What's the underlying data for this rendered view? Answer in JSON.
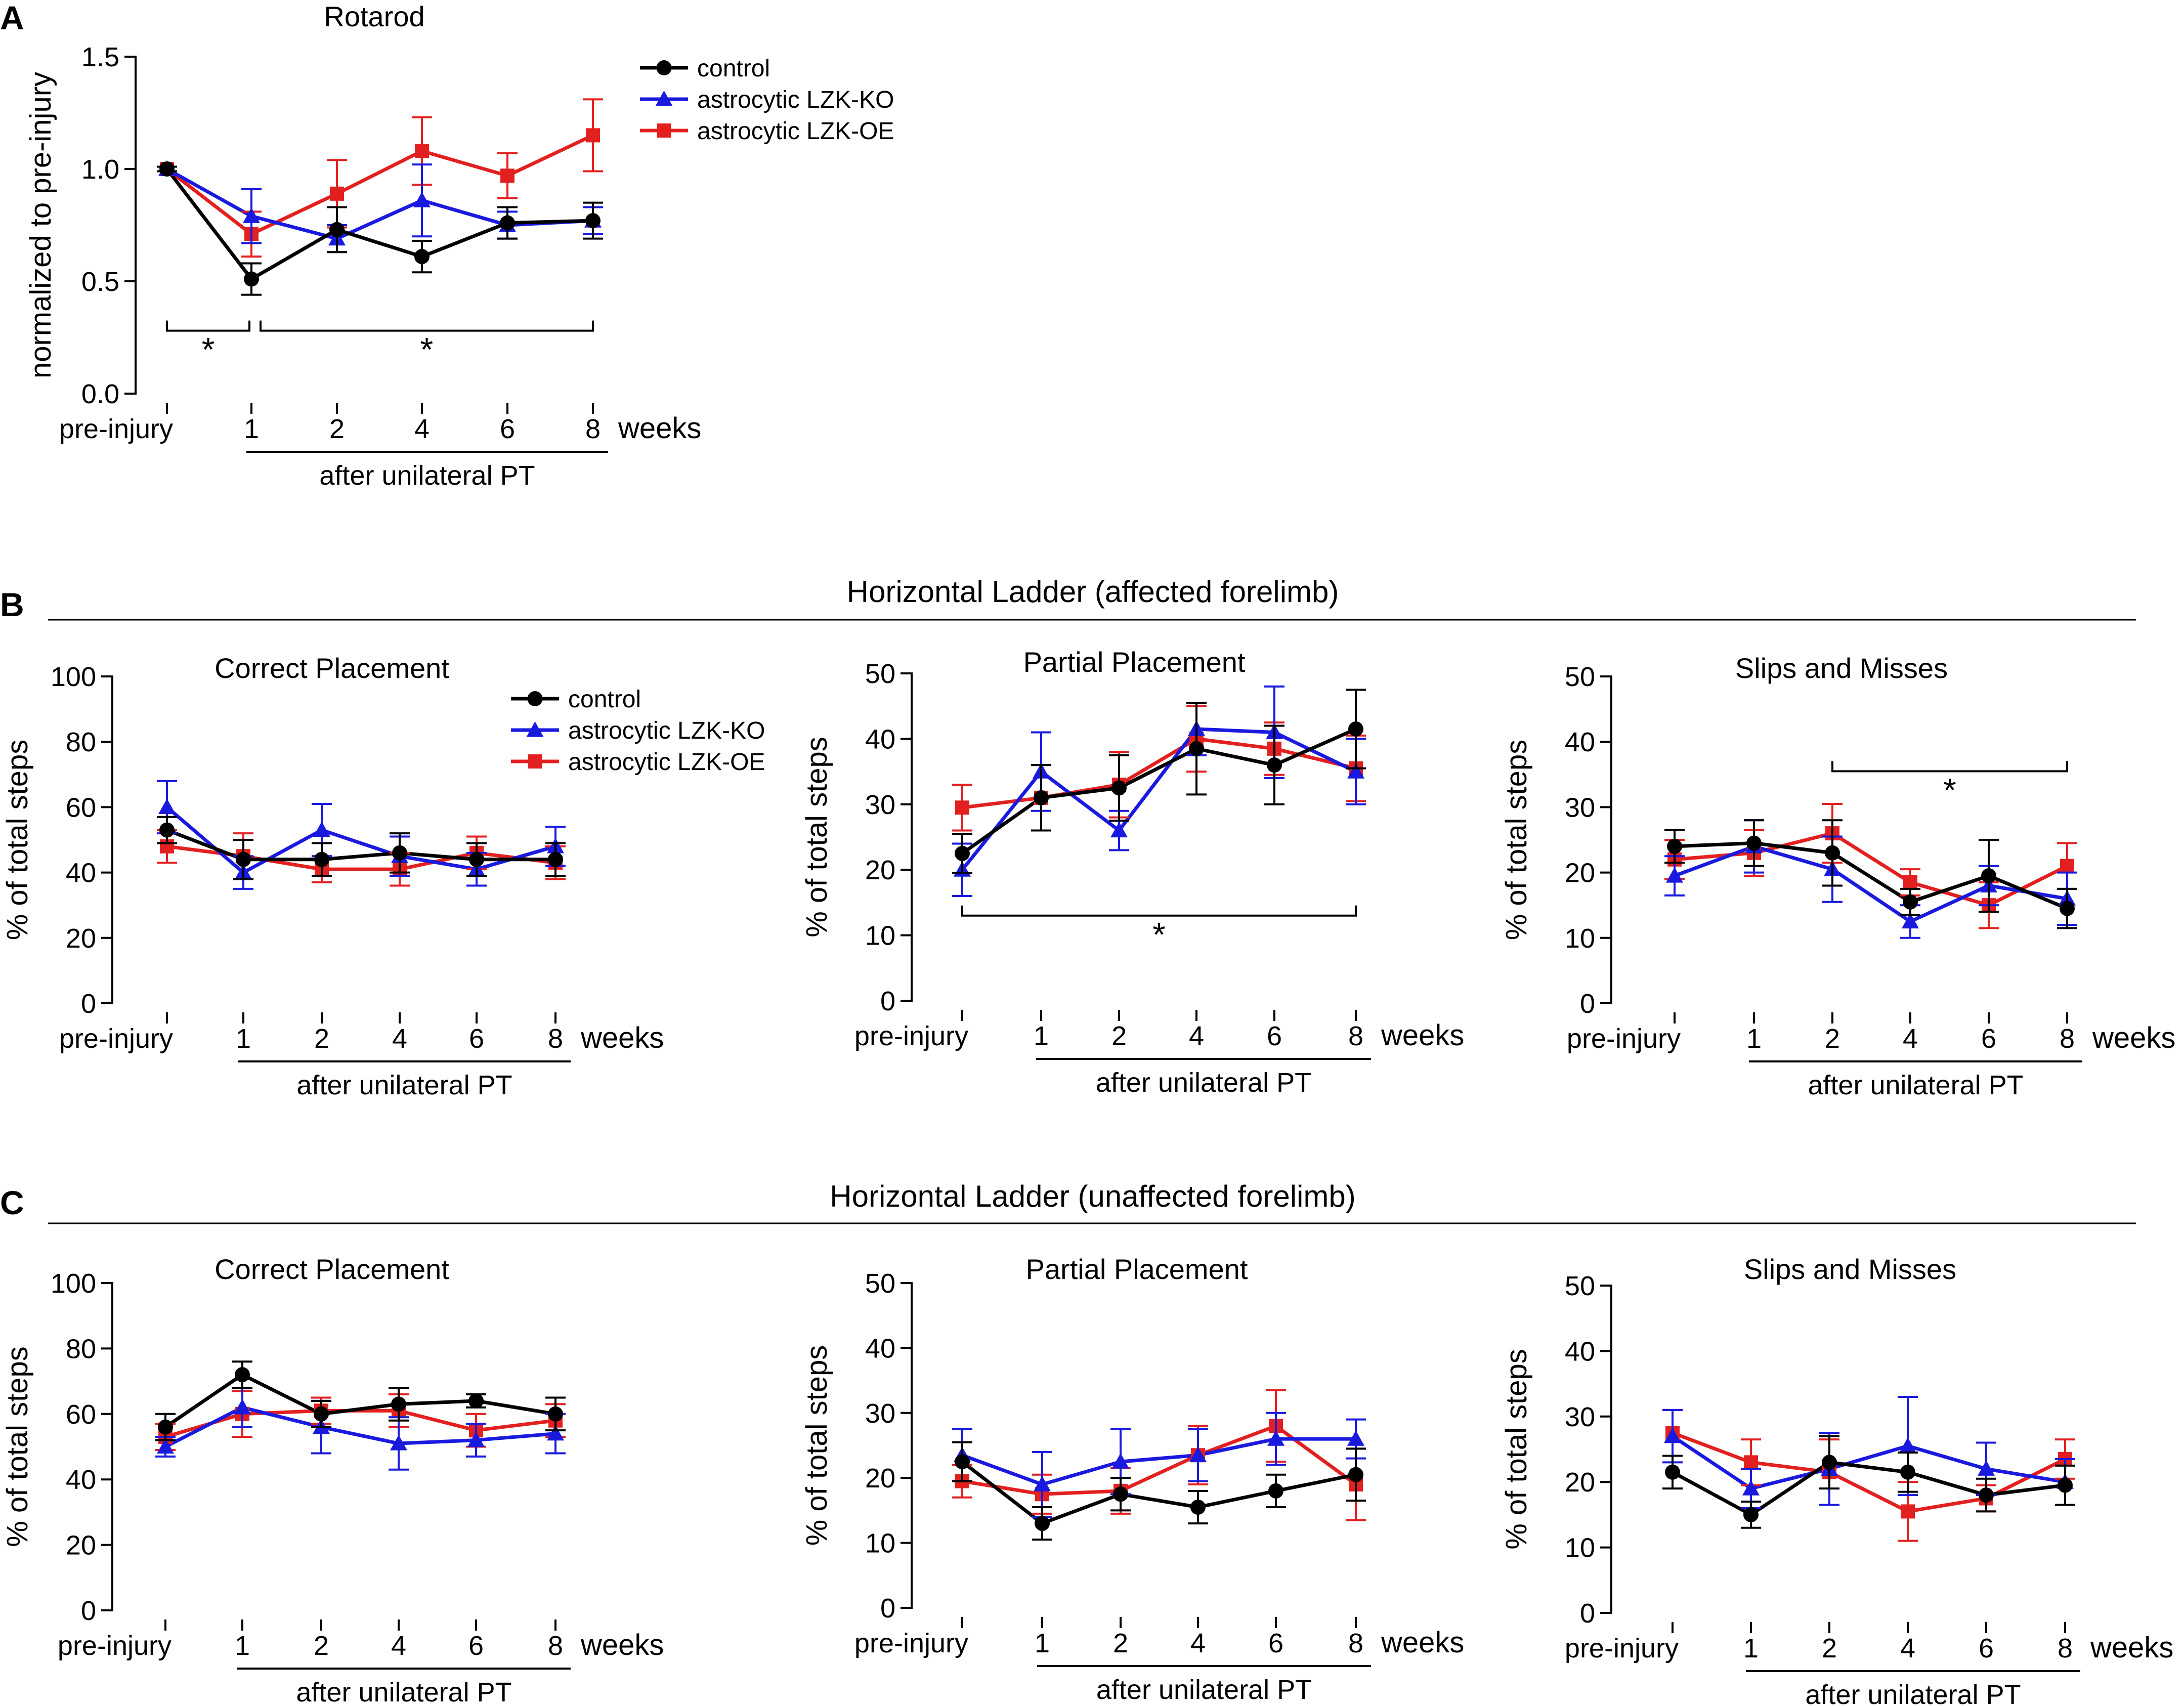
{
  "figure": {
    "sections": [
      {
        "letter": "A",
        "title": ""
      },
      {
        "letter": "B",
        "title": "Horizontal Ladder (affected forelimb)"
      },
      {
        "letter": "C",
        "title": "Horizontal Ladder (unaffected forelimb)"
      }
    ],
    "xaxis_common": {
      "units_label": "weeks",
      "bracket_label": "after unilateral PT"
    }
  },
  "chart_data": [
    {
      "id": "A",
      "type": "line",
      "title": "Rotarod",
      "ylabel": "normalized to pre-injury",
      "ylim": [
        0,
        1.5
      ],
      "yticks": [
        0.0,
        0.5,
        1.0,
        1.5
      ],
      "ytick_labels": [
        "0.0",
        "0.5",
        "1.0",
        "1.5"
      ],
      "categories": [
        "pre-injury",
        "1",
        "2",
        "4",
        "6",
        "8"
      ],
      "xlabel": "weeks",
      "legend": {
        "position": "top-right",
        "entries": [
          "control",
          "astrocytic LZK-KO",
          "astrocytic LZK-OE"
        ]
      },
      "series": [
        {
          "name": "control",
          "color": "#000000",
          "marker": "circle",
          "values": [
            1.0,
            0.51,
            0.73,
            0.61,
            0.76,
            0.77
          ],
          "errors": [
            0.01,
            0.07,
            0.1,
            0.07,
            0.07,
            0.08
          ]
        },
        {
          "name": "astrocytic LZK-KO",
          "color": "#1a1adf",
          "marker": "triangle",
          "values": [
            1.0,
            0.79,
            0.69,
            0.86,
            0.75,
            0.77
          ],
          "errors": [
            0.01,
            0.12,
            0.06,
            0.16,
            0.06,
            0.06
          ]
        },
        {
          "name": "astrocytic LZK-OE",
          "color": "#e32020",
          "marker": "square",
          "values": [
            1.0,
            0.71,
            0.89,
            1.08,
            0.97,
            1.15
          ],
          "errors": [
            0.01,
            0.1,
            0.15,
            0.15,
            0.1,
            0.16
          ]
        }
      ],
      "significance": [
        {
          "from": 0,
          "to": 1,
          "label": "*",
          "y": 0.28
        },
        {
          "from": 1,
          "to": 5,
          "label": "*",
          "y": 0.28
        }
      ]
    },
    {
      "id": "B1",
      "type": "line",
      "title": "Correct Placement",
      "ylabel": "% of total steps",
      "ylim": [
        0,
        100
      ],
      "yticks": [
        0,
        20,
        40,
        60,
        80,
        100
      ],
      "ytick_labels": [
        "0",
        "20",
        "40",
        "60",
        "80",
        "100"
      ],
      "categories": [
        "pre-injury",
        "1",
        "2",
        "4",
        "6",
        "8"
      ],
      "xlabel": "weeks",
      "legend": {
        "position": "top-right",
        "entries": [
          "control",
          "astrocytic LZK-KO",
          "astrocytic LZK-OE"
        ]
      },
      "series": [
        {
          "name": "control",
          "color": "#000000",
          "marker": "circle",
          "values": [
            53,
            44,
            44,
            46,
            44,
            44
          ],
          "errors": [
            4,
            6,
            5,
            6,
            5,
            5
          ]
        },
        {
          "name": "astrocytic LZK-KO",
          "color": "#1a1adf",
          "marker": "triangle",
          "values": [
            60,
            40,
            53,
            45,
            41,
            48
          ],
          "errors": [
            8,
            5,
            8,
            6,
            5,
            6
          ]
        },
        {
          "name": "astrocytic LZK-OE",
          "color": "#e32020",
          "marker": "square",
          "values": [
            48,
            45,
            41,
            41,
            46,
            43
          ],
          "errors": [
            5,
            7,
            4,
            5,
            5,
            5
          ]
        }
      ],
      "significance": []
    },
    {
      "id": "B2",
      "type": "line",
      "title": "Partial Placement",
      "ylabel": "% of total steps",
      "ylim": [
        0,
        50
      ],
      "yticks": [
        0,
        10,
        20,
        30,
        40,
        50
      ],
      "ytick_labels": [
        "0",
        "10",
        "20",
        "30",
        "40",
        "50"
      ],
      "categories": [
        "pre-injury",
        "1",
        "2",
        "4",
        "6",
        "8"
      ],
      "xlabel": "weeks",
      "series": [
        {
          "name": "control",
          "color": "#000000",
          "marker": "circle",
          "values": [
            22.5,
            31,
            32.5,
            38.5,
            36,
            41.5
          ],
          "errors": [
            3,
            5,
            5,
            7,
            6,
            6
          ]
        },
        {
          "name": "astrocytic LZK-KO",
          "color": "#1a1adf",
          "marker": "triangle",
          "values": [
            20,
            35,
            26,
            41.5,
            41,
            35
          ],
          "errors": [
            4,
            6,
            3,
            4,
            7,
            5
          ]
        },
        {
          "name": "astrocytic LZK-OE",
          "color": "#e32020",
          "marker": "square",
          "values": [
            29.5,
            31,
            33,
            40,
            38.5,
            35.5
          ],
          "errors": [
            3.5,
            5,
            5,
            5,
            4,
            5
          ]
        }
      ],
      "significance": [
        {
          "from": 0,
          "to": 5,
          "label": "*",
          "y": 13
        }
      ]
    },
    {
      "id": "B3",
      "type": "line",
      "title": "Slips and Misses",
      "ylabel": "% of total steps",
      "ylim": [
        0,
        50
      ],
      "yticks": [
        0,
        10,
        20,
        30,
        40,
        50
      ],
      "ytick_labels": [
        "0",
        "10",
        "20",
        "30",
        "40",
        "50"
      ],
      "categories": [
        "pre-injury",
        "1",
        "2",
        "4",
        "6",
        "8"
      ],
      "xlabel": "weeks",
      "series": [
        {
          "name": "control",
          "color": "#000000",
          "marker": "circle",
          "values": [
            24,
            24.5,
            23,
            15.5,
            19.5,
            14.5
          ],
          "errors": [
            2.5,
            3.5,
            5,
            2,
            5.5,
            3
          ]
        },
        {
          "name": "astrocytic LZK-KO",
          "color": "#1a1adf",
          "marker": "triangle",
          "values": [
            19.5,
            24,
            20.5,
            12.5,
            18,
            16
          ],
          "errors": [
            3,
            4,
            5,
            2.5,
            3,
            4
          ]
        },
        {
          "name": "astrocytic LZK-OE",
          "color": "#e32020",
          "marker": "square",
          "values": [
            22,
            23,
            26,
            18.5,
            15,
            21
          ],
          "errors": [
            3,
            3.5,
            4.5,
            2,
            3.5,
            3.5
          ]
        }
      ],
      "significance": [
        {
          "from": 2,
          "to": 5,
          "label": "*",
          "y": 35.5
        }
      ]
    },
    {
      "id": "C1",
      "type": "line",
      "title": "Correct Placement",
      "ylabel": "% of total steps",
      "ylim": [
        0,
        100
      ],
      "yticks": [
        0,
        20,
        40,
        60,
        80,
        100
      ],
      "ytick_labels": [
        "0",
        "20",
        "40",
        "60",
        "80",
        "100"
      ],
      "categories": [
        "pre-injury",
        "1",
        "2",
        "4",
        "6",
        "8"
      ],
      "xlabel": "weeks",
      "series": [
        {
          "name": "control",
          "color": "#000000",
          "marker": "circle",
          "values": [
            56,
            72,
            60,
            63,
            64,
            60
          ],
          "errors": [
            4,
            4,
            4,
            5,
            2,
            5
          ]
        },
        {
          "name": "astrocytic LZK-KO",
          "color": "#1a1adf",
          "marker": "triangle",
          "values": [
            50,
            62,
            56,
            51,
            52,
            54
          ],
          "errors": [
            3,
            6,
            8,
            8,
            5,
            6
          ]
        },
        {
          "name": "astrocytic LZK-OE",
          "color": "#e32020",
          "marker": "square",
          "values": [
            53,
            60,
            61,
            61,
            55,
            58
          ],
          "errors": [
            4,
            7,
            4,
            5,
            5,
            5
          ]
        }
      ],
      "significance": []
    },
    {
      "id": "C2",
      "type": "line",
      "title": "Partial Placement",
      "ylabel": "% of total steps",
      "ylim": [
        0,
        50
      ],
      "yticks": [
        0,
        10,
        20,
        30,
        40,
        50
      ],
      "ytick_labels": [
        "0",
        "10",
        "20",
        "30",
        "40",
        "50"
      ],
      "categories": [
        "pre-injury",
        "1",
        "2",
        "4",
        "6",
        "8"
      ],
      "xlabel": "weeks",
      "series": [
        {
          "name": "control",
          "color": "#000000",
          "marker": "circle",
          "values": [
            22.5,
            13,
            17.5,
            15.5,
            18,
            20.5
          ],
          "errors": [
            3,
            2.5,
            2.5,
            2.5,
            2.5,
            4
          ]
        },
        {
          "name": "astrocytic LZK-KO",
          "color": "#1a1adf",
          "marker": "triangle",
          "values": [
            23.5,
            19,
            22.5,
            23.5,
            26,
            26
          ],
          "errors": [
            4,
            5,
            5,
            4,
            4,
            3
          ]
        },
        {
          "name": "astrocytic LZK-OE",
          "color": "#e32020",
          "marker": "square",
          "values": [
            19.5,
            17.5,
            18,
            23.5,
            28,
            19
          ],
          "errors": [
            2.5,
            3,
            3.5,
            4.5,
            5.5,
            5.5
          ]
        }
      ],
      "significance": []
    },
    {
      "id": "C3",
      "type": "line",
      "title": "Slips and Misses",
      "ylabel": "% of total steps",
      "ylim": [
        0,
        50
      ],
      "yticks": [
        0,
        10,
        20,
        30,
        40,
        50
      ],
      "ytick_labels": [
        "0",
        "10",
        "20",
        "30",
        "40",
        "50"
      ],
      "categories": [
        "pre-injury",
        "1",
        "2",
        "4",
        "6",
        "8"
      ],
      "xlabel": "weeks",
      "series": [
        {
          "name": "control",
          "color": "#000000",
          "marker": "circle",
          "values": [
            21.5,
            15,
            23,
            21.5,
            18,
            19.5
          ],
          "errors": [
            2.5,
            2,
            4,
            3,
            2.5,
            3
          ]
        },
        {
          "name": "astrocytic LZK-KO",
          "color": "#1a1adf",
          "marker": "triangle",
          "values": [
            27,
            19,
            22,
            25.5,
            22,
            20
          ],
          "errors": [
            4,
            3,
            5.5,
            7.5,
            4,
            3.5
          ]
        },
        {
          "name": "astrocytic LZK-OE",
          "color": "#e32020",
          "marker": "square",
          "values": [
            27.5,
            23,
            21.5,
            15.5,
            17.5,
            23.5
          ],
          "errors": [
            3.5,
            3.5,
            5,
            4.5,
            2,
            3
          ]
        }
      ],
      "significance": []
    }
  ]
}
